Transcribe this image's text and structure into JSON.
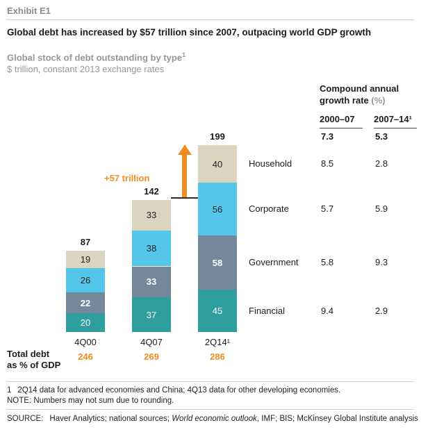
{
  "accent": {
    "orange": "#f08c22",
    "ink": "#1c1c1c",
    "gray_text": "#969696"
  },
  "header": {
    "exhibit_label": "Exhibit E1",
    "title": "Global debt has increased by $57 trillion since 2007, outpacing world GDP growth",
    "subtitle": "Global stock of debt outstanding by type",
    "subtitle_superscript": "1",
    "unit_note": "$ trillion, constant 2013 exchange rates"
  },
  "chart_data": {
    "type": "bar",
    "stacked": true,
    "title": "Global stock of debt outstanding by type",
    "unit": "$ trillion, constant 2013 exchange rates",
    "categories": [
      "4Q00",
      "4Q07",
      "2Q14¹"
    ],
    "series": [
      {
        "name": "Financial",
        "color": "#2f9e9e",
        "text_color": "#ffffff",
        "bold": false,
        "values": [
          20,
          37,
          45
        ]
      },
      {
        "name": "Government",
        "color": "#75879b",
        "text_color": "#ffffff",
        "bold": true,
        "values": [
          22,
          33,
          58
        ]
      },
      {
        "name": "Corporate",
        "color": "#54c6ea",
        "text_color": "#222222",
        "bold": false,
        "values": [
          26,
          38,
          56
        ]
      },
      {
        "name": "Household",
        "color": "#d9d5bf",
        "text_color": "#222222",
        "bold": false,
        "values": [
          19,
          33,
          40
        ]
      }
    ],
    "stack_order": "bottom to top: Financial, Government, Corporate, Household",
    "totals": [
      87,
      142,
      199
    ],
    "annotation": "+57 trillion",
    "ylim": [
      0,
      210
    ],
    "legend_position": "right of last bar"
  },
  "gdp_row": {
    "label_line1": "Total debt",
    "label_line2": "as % of GDP",
    "values": [
      "246",
      "269",
      "286"
    ]
  },
  "growth_table": {
    "title_main": "Compound annual growth rate ",
    "title_unit": "(%)",
    "columns": [
      "2000–07",
      "2007–14¹"
    ],
    "total_row": [
      "7.3",
      "5.3"
    ],
    "rows": [
      {
        "label": "Household",
        "values": [
          "8.5",
          "2.8"
        ]
      },
      {
        "label": "Corporate",
        "values": [
          "5.7",
          "5.9"
        ]
      },
      {
        "label": "Government",
        "values": [
          "5.8",
          "9.3"
        ]
      },
      {
        "label": "Financial",
        "values": [
          "9.4",
          "2.9"
        ]
      }
    ]
  },
  "footnotes": {
    "note1_marker": "1",
    "note1_text": "2Q14 data for advanced economies and China; 4Q13 data for other developing economies.",
    "note2": "NOTE: Numbers may not sum due to rounding."
  },
  "source": {
    "prefix": "SOURCE:",
    "part1": "Haver Analytics; national sources; ",
    "italic": "World economic outlook",
    "part2": ", IMF; BIS; McKinsey Global Institute analysis"
  }
}
